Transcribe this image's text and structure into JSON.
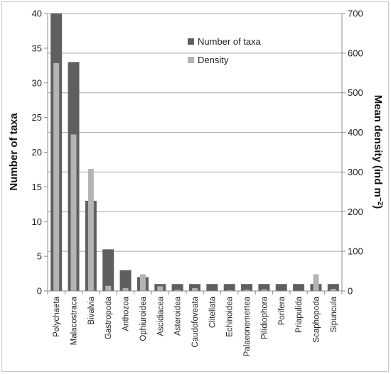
{
  "chart_data": {
    "type": "bar",
    "title": "",
    "categories": [
      "Polychaeta",
      "Malacostraca",
      "Bivalvia",
      "Gastropoda",
      "Anthozoa",
      "Ophiuroidea",
      "Ascidiacea",
      "Asteroidea",
      "Caudofoveata",
      "Clitellata",
      "Echinoidea",
      "Palaeonemertea",
      "Pilidiophora",
      "Porifera",
      "Priapulida",
      "Scaphopoda",
      "Sipuncula"
    ],
    "series": [
      {
        "name": "Number of taxa",
        "axis": "left",
        "color": "#5f5f5f",
        "values": [
          40,
          33,
          13,
          6,
          3,
          2,
          1,
          1,
          1,
          1,
          1,
          1,
          1,
          1,
          1,
          1,
          1
        ]
      },
      {
        "name": "Density",
        "axis": "right",
        "color": "#b4b4b4",
        "values": [
          575,
          395,
          308,
          13,
          7,
          42,
          12,
          3,
          7,
          1,
          2,
          3,
          4,
          1,
          1,
          42,
          5
        ]
      }
    ],
    "ylabel": "Number of taxa",
    "ylim": [
      0,
      40
    ],
    "yticks": [
      "0",
      "5",
      "10",
      "15",
      "20",
      "25",
      "30",
      "35",
      "40"
    ],
    "y2label_main": "Mean density (ind m",
    "y2label_sup": "−2",
    "y2label_close": ")",
    "y2lim": [
      0,
      700
    ],
    "y2ticks": [
      "0",
      "100",
      "200",
      "300",
      "400",
      "500",
      "600",
      "700"
    ],
    "grid": true,
    "legend_position": "top-center"
  }
}
